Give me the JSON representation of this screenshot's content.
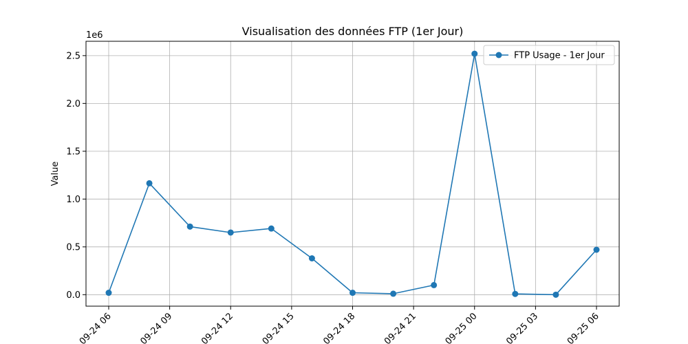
{
  "chart_data": {
    "type": "line",
    "title": "Visualisation des données FTP (1er Jour)",
    "xlabel": "",
    "ylabel": "Value",
    "y_offset_label": "1e6",
    "y_scale_factor": 1000000,
    "xlim": [
      "2024-09-24 04:53",
      "2024-09-25 07:07"
    ],
    "ylim": [
      -120000,
      2650000
    ],
    "grid": true,
    "legend_position": "top-right",
    "x_ticks": [
      "2024-09-24 06:00",
      "2024-09-24 09:00",
      "2024-09-24 12:00",
      "2024-09-24 15:00",
      "2024-09-24 18:00",
      "2024-09-24 21:00",
      "2024-09-25 00:00",
      "2024-09-25 03:00",
      "2024-09-25 06:00"
    ],
    "x_tick_labels": [
      "09-24 06",
      "09-24 09",
      "09-24 12",
      "09-24 15",
      "09-24 18",
      "09-24 21",
      "09-25 00",
      "09-25 03",
      "09-25 06"
    ],
    "y_ticks": [
      0,
      500000,
      1000000,
      1500000,
      2000000,
      2500000
    ],
    "y_tick_labels": [
      "0.0",
      "0.5",
      "1.0",
      "1.5",
      "2.0",
      "2.5"
    ],
    "series": [
      {
        "name": "FTP Usage - 1er Jour",
        "color": "#1f77b4",
        "x": [
          "2024-09-24 06:00",
          "2024-09-24 08:00",
          "2024-09-24 10:00",
          "2024-09-24 12:00",
          "2024-09-24 14:00",
          "2024-09-24 16:00",
          "2024-09-24 18:00",
          "2024-09-24 20:00",
          "2024-09-24 22:00",
          "2024-09-25 00:00",
          "2024-09-25 02:00",
          "2024-09-25 04:00",
          "2024-09-25 06:00"
        ],
        "values": [
          20000,
          1165000,
          712000,
          650000,
          692000,
          380000,
          20000,
          10000,
          100000,
          2520000,
          8000,
          0,
          470000
        ]
      }
    ]
  }
}
